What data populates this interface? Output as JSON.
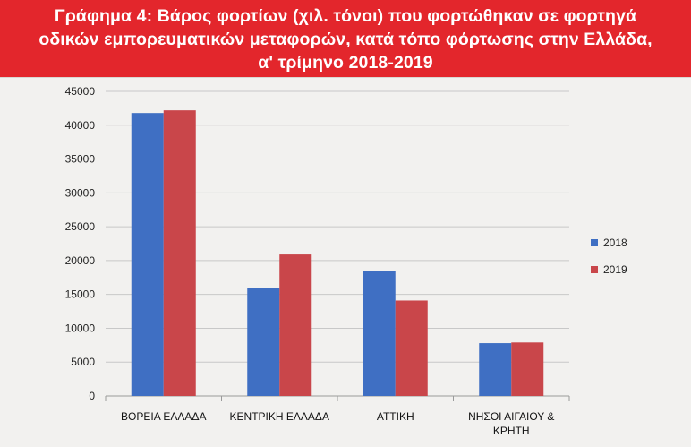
{
  "header": {
    "title_lines": [
      "Γράφημα 4: Βάρος φορτίων (χιλ. τόνοι) που φορτώθηκαν σε φορτηγά",
      "οδικών εμπορευματικών μεταφορών, κατά τόπο φόρτωσης στην Ελλάδα,",
      "α' τρίμηνο 2018-2019"
    ]
  },
  "colors": {
    "header_bg": "#e3262c",
    "series_2018": "#3f6fc3",
    "series_2019": "#c9464a",
    "grid": "#c8c8c8"
  },
  "chart_data": {
    "type": "bar",
    "title": "Γράφημα 4: Βάρος φορτίων (χιλ. τόνοι) που φορτώθηκαν σε φορτηγά οδικών εμπορευματικών μεταφορών, κατά τόπο φόρτωσης στην Ελλάδα, α' τρίμηνο 2018-2019",
    "categories": [
      [
        "ΒΟΡΕΙΑ ΕΛΛΑΔΑ"
      ],
      [
        "ΚΕΝΤΡΙΚΗ ΕΛΛΑΔΑ"
      ],
      [
        "ΑΤΤΙΚΗ"
      ],
      [
        "ΝΗΣΟΙ ΑΙΓΑΙΟΥ &",
        "ΚΡΗΤΗ"
      ]
    ],
    "series": [
      {
        "name": "2018",
        "values": [
          41800,
          16000,
          18400,
          7800
        ],
        "color": "#3f6fc3"
      },
      {
        "name": "2019",
        "values": [
          42200,
          20900,
          14100,
          7900
        ],
        "color": "#c9464a"
      }
    ],
    "yticks": [
      "0",
      "5000",
      "10000",
      "15000",
      "20000",
      "25000",
      "30000",
      "35000",
      "40000",
      "45000"
    ],
    "ylim": [
      0,
      45000
    ],
    "xlabel": "",
    "ylabel": "",
    "grid": true,
    "legend_position": "right"
  }
}
